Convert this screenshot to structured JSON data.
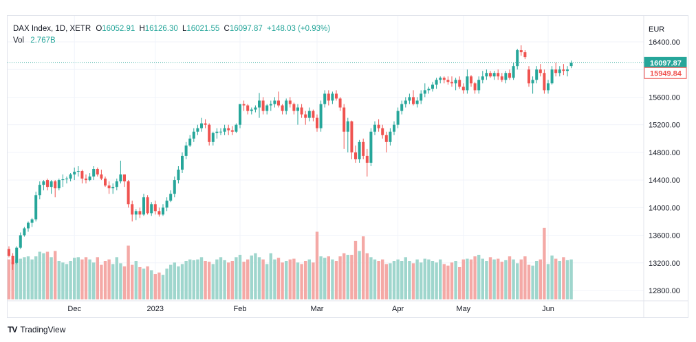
{
  "legend": {
    "symbol": "DAX Index, 1D, XETR",
    "o_label": "O",
    "o_value": "16052.91",
    "h_label": "H",
    "h_value": "16126.30",
    "l_label": "L",
    "l_value": "16021.55",
    "c_label": "C",
    "c_value": "16097.87",
    "change": "+148.03 (+0.93%)",
    "vol_label": "Vol",
    "vol_value": "2.767B"
  },
  "currency": "EUR",
  "brand": {
    "logo": "TV",
    "name": "TradingView"
  },
  "colors": {
    "up": "#26a69a",
    "down": "#ef5350",
    "up_vol": "#9fd6cd",
    "down_vol": "#f4a9a6",
    "grid": "#f0f3fa",
    "text": "#131722"
  },
  "price_tags": [
    {
      "label": "16097.87",
      "value": 16097.87,
      "style": "filled-up"
    },
    {
      "label": "15949.84",
      "value": 15949.84,
      "style": "outline-down"
    }
  ],
  "chart_data": {
    "type": "candlestick",
    "title": "DAX Index, 1D, XETR",
    "ylabel": "EUR",
    "ylim": [
      12640,
      16640
    ],
    "y_ticks": [
      "16400.00",
      "16000.00",
      "15600.00",
      "15200.00",
      "14800.00",
      "14400.00",
      "14000.00",
      "13600.00",
      "13200.00",
      "12800.00"
    ],
    "y_tick_values": [
      16400,
      16000,
      15600,
      15200,
      14800,
      14400,
      14000,
      13600,
      13200,
      12800
    ],
    "x_labels": [
      {
        "label": "Dec",
        "index": 17
      },
      {
        "label": "2023",
        "index": 38
      },
      {
        "label": "Feb",
        "index": 60
      },
      {
        "label": "Mar",
        "index": 80
      },
      {
        "label": "Apr",
        "index": 101
      },
      {
        "label": "May",
        "index": 118
      },
      {
        "label": "Jun",
        "index": 140
      }
    ],
    "grid": true,
    "last_price_line": 16097.87,
    "candles": [
      [
        13400,
        13440,
        13280,
        13300,
        0.52
      ],
      [
        13300,
        13340,
        13100,
        13180,
        0.48
      ],
      [
        13200,
        13440,
        13180,
        13420,
        0.52
      ],
      [
        13420,
        13640,
        13400,
        13600,
        0.53
      ],
      [
        13600,
        13720,
        13580,
        13700,
        0.55
      ],
      [
        13700,
        13800,
        13650,
        13780,
        0.56
      ],
      [
        13780,
        13850,
        13720,
        13830,
        0.52
      ],
      [
        13830,
        14230,
        13800,
        14180,
        0.56
      ],
      [
        14180,
        14380,
        14120,
        14330,
        0.62
      ],
      [
        14330,
        14400,
        14250,
        14380,
        0.6
      ],
      [
        14400,
        14420,
        14250,
        14300,
        0.62
      ],
      [
        14300,
        14400,
        14200,
        14380,
        0.55
      ],
      [
        14380,
        14400,
        14150,
        14280,
        0.63
      ],
      [
        14280,
        14420,
        14250,
        14400,
        0.5
      ],
      [
        14400,
        14480,
        14300,
        14410,
        0.48
      ],
      [
        14410,
        14450,
        14350,
        14420,
        0.46
      ],
      [
        14420,
        14500,
        14380,
        14480,
        0.5
      ],
      [
        14480,
        14580,
        14400,
        14520,
        0.54
      ],
      [
        14520,
        14600,
        14450,
        14530,
        0.55
      ],
      [
        14530,
        14550,
        14350,
        14420,
        0.52
      ],
      [
        14420,
        14480,
        14350,
        14400,
        0.55
      ],
      [
        14400,
        14500,
        14380,
        14450,
        0.52
      ],
      [
        14450,
        14600,
        14400,
        14560,
        0.48
      ],
      [
        14560,
        14580,
        14450,
        14480,
        0.55
      ],
      [
        14480,
        14550,
        14400,
        14420,
        0.45
      ],
      [
        14420,
        14450,
        14300,
        14320,
        0.5
      ],
      [
        14320,
        14380,
        14200,
        14280,
        0.52
      ],
      [
        14280,
        14350,
        14200,
        14300,
        0.46
      ],
      [
        14300,
        14420,
        14250,
        14380,
        0.55
      ],
      [
        14380,
        14680,
        14350,
        14480,
        0.47
      ],
      [
        14480,
        14480,
        14300,
        14380,
        0.43
      ],
      [
        14380,
        14400,
        14000,
        14050,
        0.7
      ],
      [
        14050,
        14100,
        13800,
        13900,
        0.45
      ],
      [
        13900,
        13980,
        13820,
        13950,
        0.5
      ],
      [
        13950,
        14000,
        13850,
        13900,
        0.42
      ],
      [
        13900,
        14200,
        13880,
        14150,
        0.4
      ],
      [
        14150,
        14180,
        13900,
        13920,
        0.43
      ],
      [
        13920,
        14080,
        13880,
        14050,
        0.38
      ],
      [
        14050,
        14100,
        13900,
        13950,
        0.33
      ],
      [
        13950,
        14000,
        13870,
        13900,
        0.35
      ],
      [
        13900,
        14050,
        13880,
        14000,
        0.32
      ],
      [
        14000,
        14150,
        13950,
        14100,
        0.4
      ],
      [
        14100,
        14250,
        14080,
        14200,
        0.45
      ],
      [
        14200,
        14450,
        14150,
        14400,
        0.48
      ],
      [
        14400,
        14600,
        14350,
        14550,
        0.43
      ],
      [
        14550,
        14800,
        14500,
        14750,
        0.46
      ],
      [
        14750,
        14950,
        14700,
        14900,
        0.5
      ],
      [
        14900,
        15050,
        14880,
        15000,
        0.52
      ],
      [
        15000,
        15150,
        14950,
        15100,
        0.51
      ],
      [
        15100,
        15200,
        15050,
        15150,
        0.52
      ],
      [
        15150,
        15300,
        15100,
        15220,
        0.55
      ],
      [
        15220,
        15280,
        15150,
        15200,
        0.5
      ],
      [
        15200,
        15220,
        14900,
        14950,
        0.49
      ],
      [
        14950,
        15100,
        14900,
        15080,
        0.46
      ],
      [
        15080,
        15150,
        15000,
        15100,
        0.52
      ],
      [
        15100,
        15150,
        15050,
        15100,
        0.55
      ],
      [
        15100,
        15200,
        15050,
        15150,
        0.51
      ],
      [
        15150,
        15200,
        15050,
        15120,
        0.48
      ],
      [
        15120,
        15180,
        15050,
        15100,
        0.5
      ],
      [
        15100,
        15220,
        15080,
        15200,
        0.55
      ],
      [
        15200,
        15500,
        15150,
        15500,
        0.58
      ],
      [
        15500,
        15550,
        15400,
        15480,
        0.49
      ],
      [
        15480,
        15500,
        15350,
        15400,
        0.52
      ],
      [
        15400,
        15450,
        15350,
        15420,
        0.57
      ],
      [
        15420,
        15480,
        15380,
        15450,
        0.6
      ],
      [
        15450,
        15660,
        15300,
        15550,
        0.55
      ],
      [
        15550,
        15600,
        15350,
        15400,
        0.52
      ],
      [
        15400,
        15500,
        15350,
        15480,
        0.46
      ],
      [
        15480,
        15550,
        15400,
        15500,
        0.6
      ],
      [
        15500,
        15600,
        15450,
        15550,
        0.52
      ],
      [
        15550,
        15680,
        15450,
        15480,
        0.54
      ],
      [
        15480,
        15500,
        15350,
        15400,
        0.48
      ],
      [
        15400,
        15580,
        15350,
        15550,
        0.5
      ],
      [
        15550,
        15600,
        15450,
        15500,
        0.52
      ],
      [
        15500,
        15520,
        15350,
        15400,
        0.53
      ],
      [
        15400,
        15500,
        15200,
        15450,
        0.48
      ],
      [
        15450,
        15500,
        15300,
        15350,
        0.46
      ],
      [
        15350,
        15400,
        15200,
        15300,
        0.5
      ],
      [
        15300,
        15450,
        15250,
        15400,
        0.52
      ],
      [
        15400,
        15420,
        15250,
        15300,
        0.48
      ],
      [
        15300,
        15350,
        15100,
        15150,
        0.88
      ],
      [
        15150,
        15550,
        15100,
        15500,
        0.56
      ],
      [
        15500,
        15700,
        15450,
        15650,
        0.54
      ],
      [
        15650,
        15700,
        15480,
        15550,
        0.56
      ],
      [
        15550,
        15680,
        15500,
        15650,
        0.52
      ],
      [
        15650,
        15700,
        15550,
        15580,
        0.5
      ],
      [
        15580,
        15600,
        15400,
        15450,
        0.56
      ],
      [
        15450,
        15500,
        14850,
        15100,
        0.6
      ],
      [
        15100,
        15300,
        14800,
        15250,
        0.58
      ],
      [
        15250,
        15260,
        14700,
        14800,
        0.58
      ],
      [
        14800,
        14900,
        14650,
        14700,
        0.76
      ],
      [
        14700,
        14980,
        14650,
        14950,
        0.63
      ],
      [
        14950,
        15000,
        14700,
        14750,
        0.82
      ],
      [
        14750,
        14850,
        14450,
        14650,
        0.6
      ],
      [
        14650,
        15150,
        14600,
        15100,
        0.55
      ],
      [
        15100,
        15250,
        15050,
        15200,
        0.52
      ],
      [
        15200,
        15280,
        15100,
        15150,
        0.5
      ],
      [
        15150,
        15200,
        15000,
        15050,
        0.52
      ],
      [
        15050,
        15100,
        14800,
        14950,
        0.46
      ],
      [
        14950,
        15150,
        14900,
        15100,
        0.47
      ],
      [
        15100,
        15250,
        15050,
        15200,
        0.5
      ],
      [
        15200,
        15450,
        15150,
        15400,
        0.52
      ],
      [
        15400,
        15550,
        15350,
        15500,
        0.5
      ],
      [
        15500,
        15600,
        15450,
        15550,
        0.55
      ],
      [
        15550,
        15650,
        15500,
        15600,
        0.5
      ],
      [
        15600,
        15700,
        15480,
        15500,
        0.47
      ],
      [
        15500,
        15600,
        15450,
        15550,
        0.52
      ],
      [
        15550,
        15700,
        15500,
        15650,
        0.48
      ],
      [
        15650,
        15800,
        15600,
        15700,
        0.53
      ],
      [
        15700,
        15750,
        15650,
        15720,
        0.52
      ],
      [
        15720,
        15820,
        15680,
        15780,
        0.5
      ],
      [
        15780,
        15880,
        15720,
        15850,
        0.48
      ],
      [
        15850,
        15900,
        15800,
        15880,
        0.52
      ],
      [
        15880,
        15900,
        15800,
        15850,
        0.46
      ],
      [
        15850,
        15900,
        15780,
        15820,
        0.44
      ],
      [
        15820,
        15900,
        15750,
        15800,
        0.48
      ],
      [
        15800,
        15880,
        15700,
        15850,
        0.5
      ],
      [
        15850,
        15900,
        15720,
        15750,
        0.42
      ],
      [
        15750,
        15800,
        15650,
        15700,
        0.52
      ],
      [
        15700,
        16000,
        15650,
        15900,
        0.53
      ],
      [
        15900,
        15920,
        15750,
        15800,
        0.52
      ],
      [
        15800,
        15820,
        15650,
        15700,
        0.56
      ],
      [
        15700,
        15900,
        15650,
        15850,
        0.58
      ],
      [
        15850,
        15980,
        15800,
        15900,
        0.53
      ],
      [
        15900,
        16000,
        15850,
        15950,
        0.5
      ],
      [
        15950,
        15980,
        15880,
        15900,
        0.55
      ],
      [
        15900,
        15980,
        15850,
        15950,
        0.52
      ],
      [
        15950,
        16000,
        15850,
        15900,
        0.53
      ],
      [
        15900,
        15950,
        15820,
        15850,
        0.49
      ],
      [
        15850,
        15980,
        15800,
        15950,
        0.51
      ],
      [
        15950,
        16000,
        15850,
        15880,
        0.56
      ],
      [
        15880,
        16100,
        15850,
        16050,
        0.52
      ],
      [
        16050,
        16300,
        16000,
        16280,
        0.47
      ],
      [
        16280,
        16350,
        16200,
        16250,
        0.52
      ],
      [
        16250,
        16280,
        16150,
        16180,
        0.56
      ],
      [
        16000,
        16050,
        15750,
        15800,
        0.45
      ],
      [
        15800,
        15900,
        15650,
        15850,
        0.44
      ],
      [
        15850,
        16050,
        15800,
        16000,
        0.5
      ],
      [
        16000,
        16080,
        15900,
        15950,
        0.52
      ],
      [
        15950,
        16000,
        15650,
        15700,
        0.93
      ],
      [
        15700,
        15850,
        15650,
        15800,
        0.46
      ],
      [
        15800,
        16050,
        15780,
        16000,
        0.57
      ],
      [
        16000,
        16100,
        15900,
        15950,
        0.53
      ],
      [
        15950,
        16050,
        15900,
        16000,
        0.5
      ],
      [
        16000,
        16080,
        15920,
        15980,
        0.55
      ],
      [
        15980,
        16050,
        15900,
        16000,
        0.51
      ],
      [
        16050,
        16130,
        16020,
        16098,
        0.52
      ]
    ]
  }
}
